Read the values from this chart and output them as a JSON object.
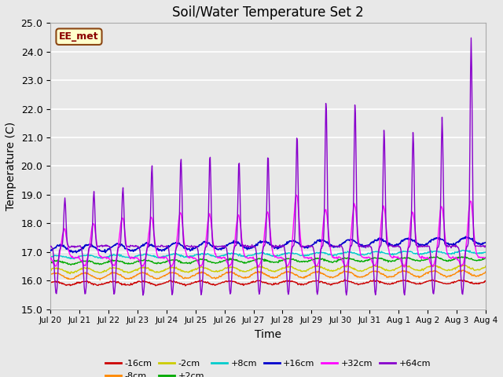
{
  "title": "Soil/Water Temperature Set 2",
  "xlabel": "Time",
  "ylabel": "Temperature (C)",
  "ylim": [
    15.0,
    25.0
  ],
  "yticks": [
    15.0,
    16.0,
    17.0,
    18.0,
    19.0,
    20.0,
    21.0,
    22.0,
    23.0,
    24.0,
    25.0
  ],
  "bg_color": "#e8e8e8",
  "annotation_text": "EE_met",
  "annotation_bg": "#ffffcc",
  "annotation_border": "#8B4513",
  "annotation_text_color": "#8B0000",
  "series": {
    "-16cm": {
      "color": "#cc0000",
      "lw": 1.0
    },
    "-8cm": {
      "color": "#ff8800",
      "lw": 1.0
    },
    "-2cm": {
      "color": "#cccc00",
      "lw": 1.0
    },
    "+2cm": {
      "color": "#00aa00",
      "lw": 1.0
    },
    "+8cm": {
      "color": "#00cccc",
      "lw": 1.0
    },
    "+16cm": {
      "color": "#0000cc",
      "lw": 1.2
    },
    "+32cm": {
      "color": "#ff00ff",
      "lw": 1.0
    },
    "+64cm": {
      "color": "#8800cc",
      "lw": 1.0
    }
  },
  "xtick_labels": [
    "Jul 20",
    "Jul 21",
    "Jul 22",
    "Jul 23",
    "Jul 24",
    "Jul 25",
    "Jul 26",
    "Jul 27",
    "Jul 28",
    "Jul 29",
    "Jul 30",
    "Jul 31",
    "Aug 1",
    "Aug 2",
    "Aug 3",
    "Aug 4"
  ]
}
